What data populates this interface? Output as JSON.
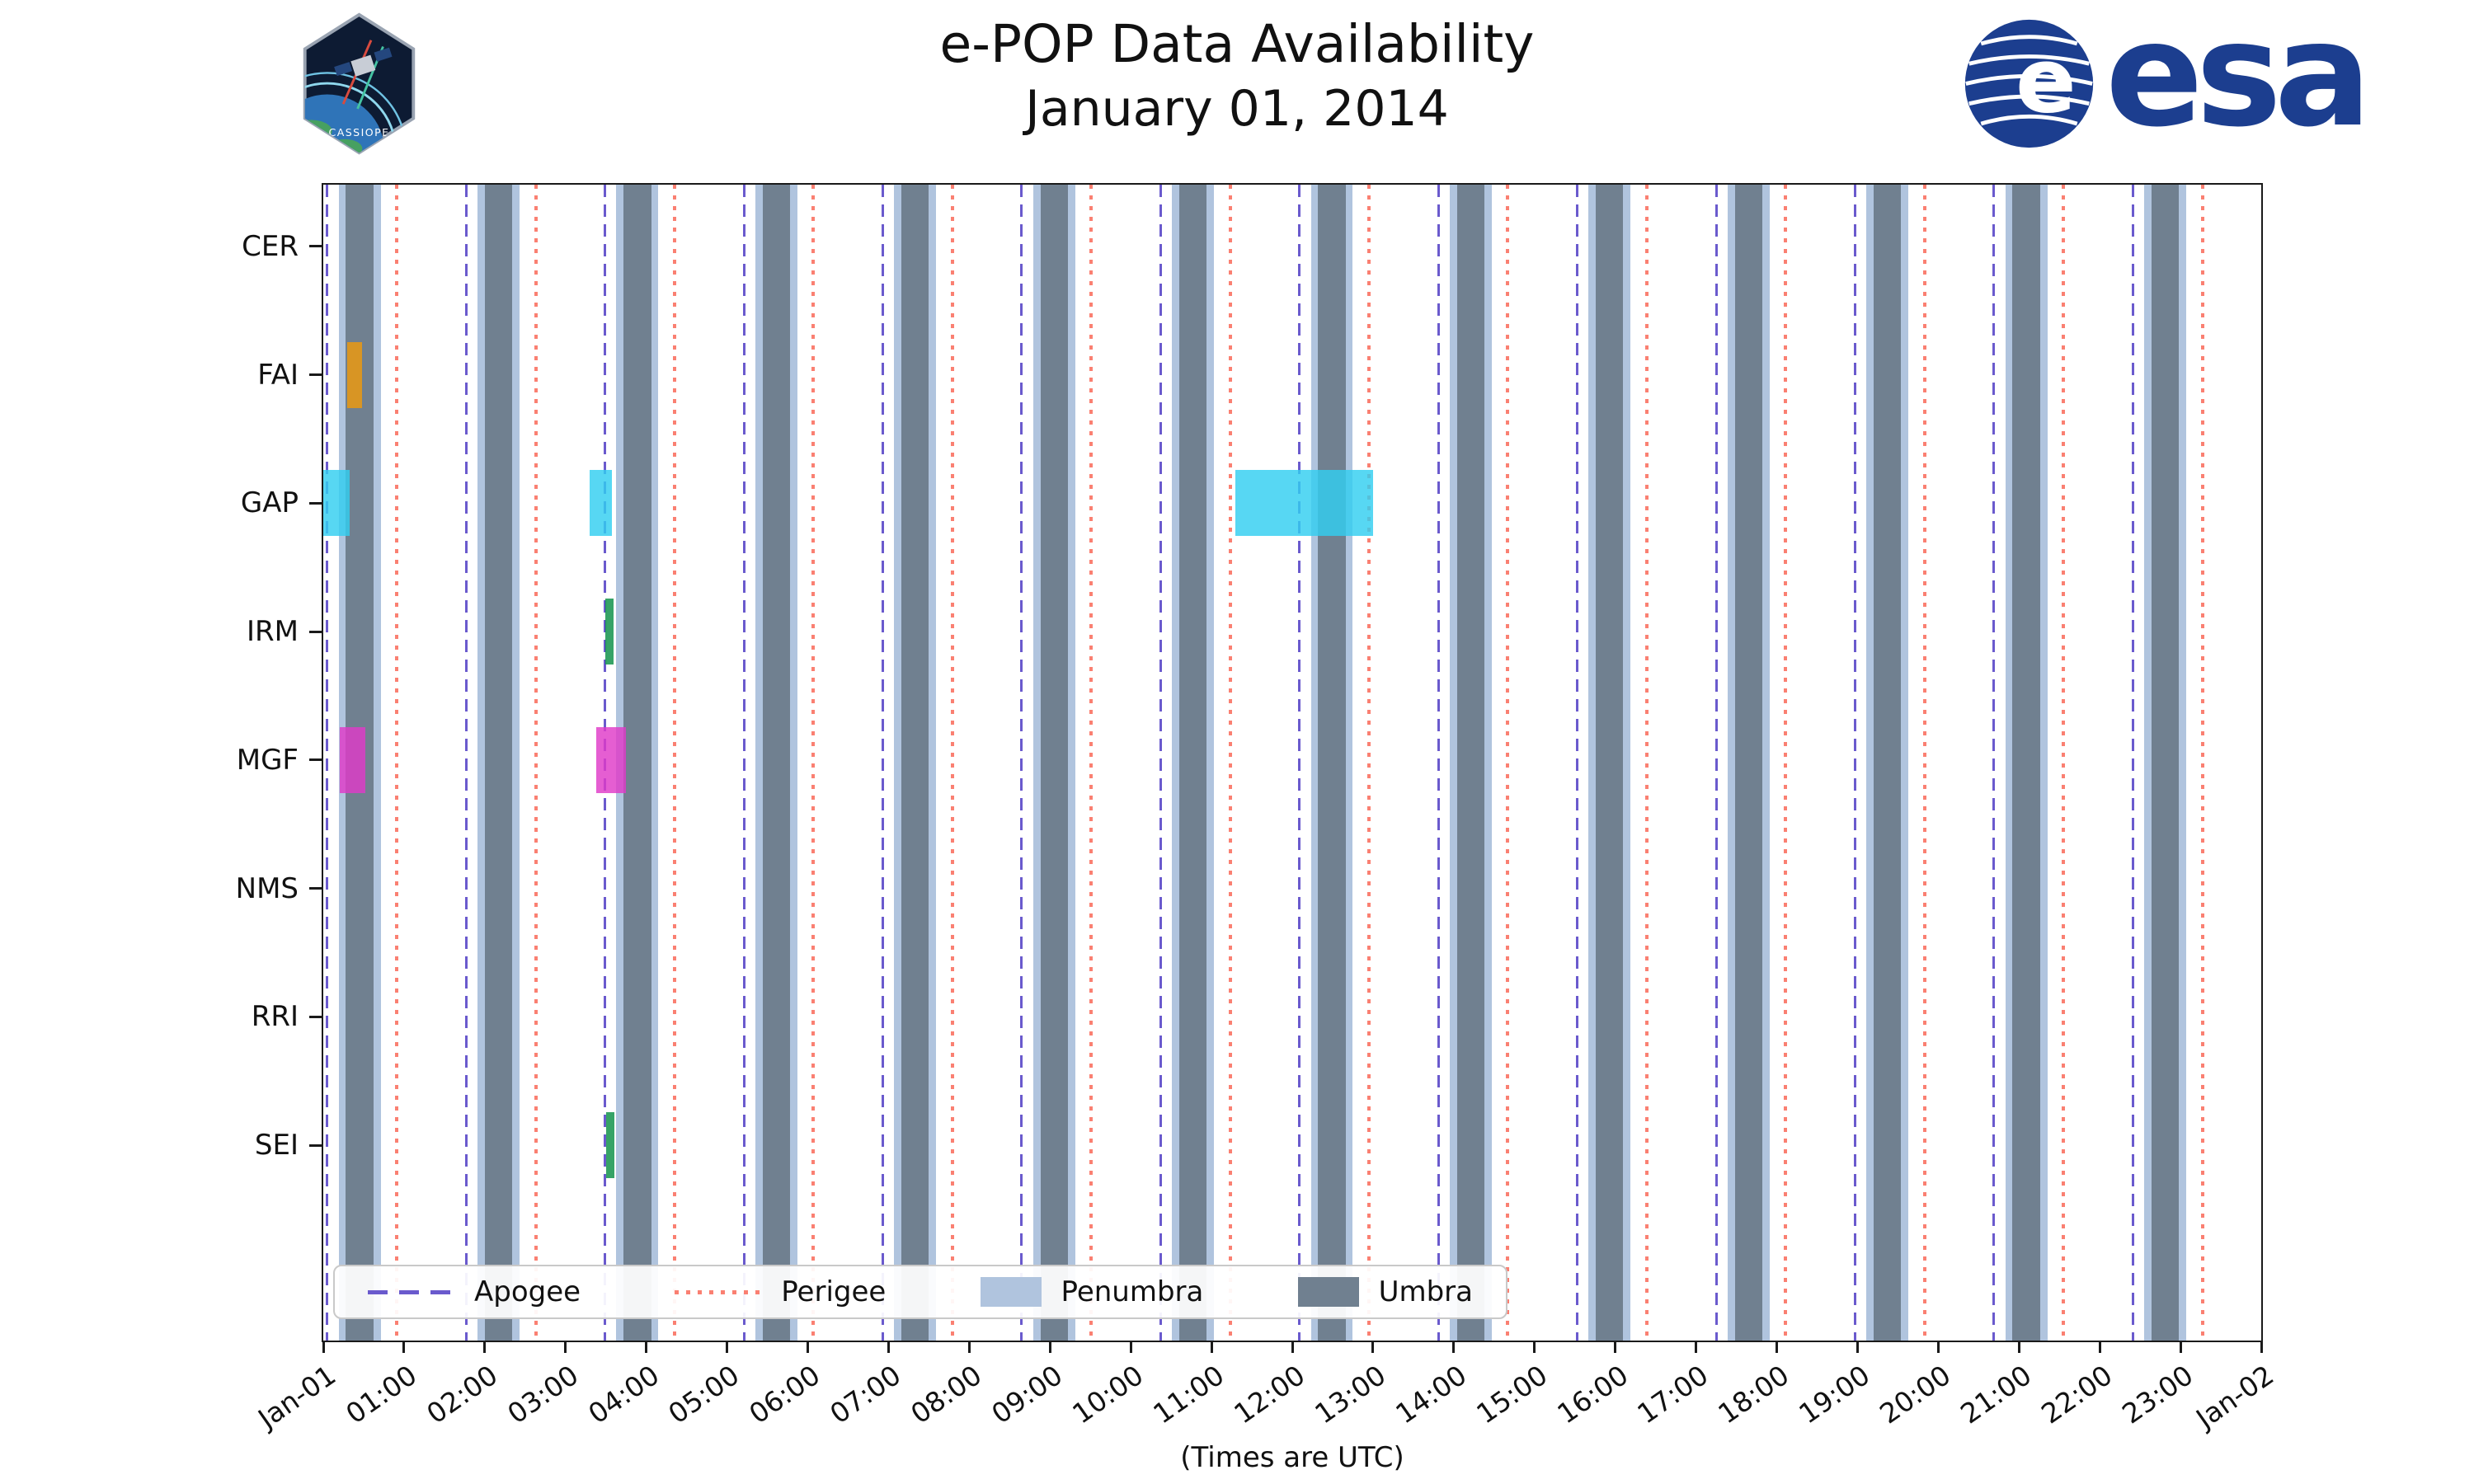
{
  "header": {
    "title_line1": "e-POP Data Availability",
    "title_line2": "January 01, 2014",
    "cassiope_label": "CASSIOPE",
    "esa_label": "esa",
    "esa_globe_letter": "e"
  },
  "colors": {
    "apogee": "#6a5acd",
    "perigee": "#fa8072",
    "penumbra": "#b0c4de",
    "umbra": "#708090",
    "axis": "#1a1a1a",
    "esa_blue": "#1c3e8f"
  },
  "chart_data": {
    "type": "timeline",
    "title": "e-POP Data Availability",
    "subtitle": "January 01, 2014",
    "xlabel": "(Times are UTC)",
    "x_unit": "hours UTC on 2014-01-01",
    "xlim": [
      0,
      24
    ],
    "grid": false,
    "legend_position": "lower left inside axes",
    "categories": [
      "CER",
      "FAI",
      "GAP",
      "IRM",
      "MGF",
      "NMS",
      "RRI",
      "SEI"
    ],
    "x_ticks": [
      {
        "t": 0,
        "label": "Jan-01"
      },
      {
        "t": 1,
        "label": "01:00"
      },
      {
        "t": 2,
        "label": "02:00"
      },
      {
        "t": 3,
        "label": "03:00"
      },
      {
        "t": 4,
        "label": "04:00"
      },
      {
        "t": 5,
        "label": "05:00"
      },
      {
        "t": 6,
        "label": "06:00"
      },
      {
        "t": 7,
        "label": "07:00"
      },
      {
        "t": 8,
        "label": "08:00"
      },
      {
        "t": 9,
        "label": "09:00"
      },
      {
        "t": 10,
        "label": "10:00"
      },
      {
        "t": 11,
        "label": "11:00"
      },
      {
        "t": 12,
        "label": "12:00"
      },
      {
        "t": 13,
        "label": "13:00"
      },
      {
        "t": 14,
        "label": "14:00"
      },
      {
        "t": 15,
        "label": "15:00"
      },
      {
        "t": 16,
        "label": "16:00"
      },
      {
        "t": 17,
        "label": "17:00"
      },
      {
        "t": 18,
        "label": "18:00"
      },
      {
        "t": 19,
        "label": "19:00"
      },
      {
        "t": 20,
        "label": "20:00"
      },
      {
        "t": 21,
        "label": "21:00"
      },
      {
        "t": 22,
        "label": "22:00"
      },
      {
        "t": 23,
        "label": "23:00"
      },
      {
        "t": 24,
        "label": "Jan-02"
      }
    ],
    "events": {
      "apogee_times": [
        0.05,
        1.77,
        3.49,
        5.21,
        6.93,
        8.65,
        10.37,
        12.09,
        13.81,
        15.53,
        17.25,
        18.97,
        20.69,
        22.41
      ],
      "perigee_times": [
        0.91,
        2.63,
        4.35,
        6.07,
        7.79,
        9.51,
        11.23,
        12.95,
        14.67,
        16.39,
        18.11,
        19.83,
        21.55,
        23.27
      ],
      "umbra_intervals": [
        [
          0.28,
          0.62
        ],
        [
          2.0,
          2.34
        ],
        [
          3.72,
          4.06
        ],
        [
          5.44,
          5.78
        ],
        [
          7.16,
          7.5
        ],
        [
          8.88,
          9.22
        ],
        [
          10.6,
          10.94
        ],
        [
          12.32,
          12.66
        ],
        [
          14.04,
          14.38
        ],
        [
          15.76,
          16.1
        ],
        [
          17.48,
          17.82
        ],
        [
          19.2,
          19.54
        ],
        [
          20.92,
          21.26
        ],
        [
          22.64,
          22.98
        ]
      ],
      "penumbra_intervals": [
        [
          0.19,
          0.71
        ],
        [
          1.91,
          2.43
        ],
        [
          3.63,
          4.15
        ],
        [
          5.35,
          5.87
        ],
        [
          7.07,
          7.59
        ],
        [
          8.79,
          9.31
        ],
        [
          10.51,
          11.03
        ],
        [
          12.23,
          12.75
        ],
        [
          13.95,
          14.47
        ],
        [
          15.67,
          16.19
        ],
        [
          17.39,
          17.91
        ],
        [
          19.11,
          19.63
        ],
        [
          20.83,
          21.35
        ],
        [
          22.55,
          23.07
        ]
      ]
    },
    "availability": [
      {
        "instrument": "CER",
        "color": "#32cef0",
        "intervals": []
      },
      {
        "instrument": "FAI",
        "color": "#ef9a0c",
        "intervals": [
          [
            0.3,
            0.48
          ]
        ]
      },
      {
        "instrument": "GAP",
        "color": "#32cef0",
        "intervals": [
          [
            0.0,
            0.33
          ],
          [
            3.3,
            3.57
          ],
          [
            11.3,
            13.0
          ]
        ]
      },
      {
        "instrument": "IRM",
        "color": "#0a8f44",
        "intervals": [
          [
            3.49,
            3.6
          ]
        ]
      },
      {
        "instrument": "MGF",
        "color": "#df3bc8",
        "intervals": [
          [
            0.2,
            0.52
          ],
          [
            3.38,
            3.75
          ]
        ]
      },
      {
        "instrument": "NMS",
        "color": "#32cef0",
        "intervals": []
      },
      {
        "instrument": "RRI",
        "color": "#32cef0",
        "intervals": []
      },
      {
        "instrument": "SEI",
        "color": "#0a8f44",
        "intervals": [
          [
            3.5,
            3.61
          ]
        ]
      }
    ],
    "legend": [
      {
        "label": "Apogee",
        "type": "dashed-line",
        "color": "#6a5acd"
      },
      {
        "label": "Perigee",
        "type": "dotted-line",
        "color": "#fa8072"
      },
      {
        "label": "Penumbra",
        "type": "patch",
        "color": "#b0c4de"
      },
      {
        "label": "Umbra",
        "type": "patch",
        "color": "#708090"
      }
    ]
  }
}
